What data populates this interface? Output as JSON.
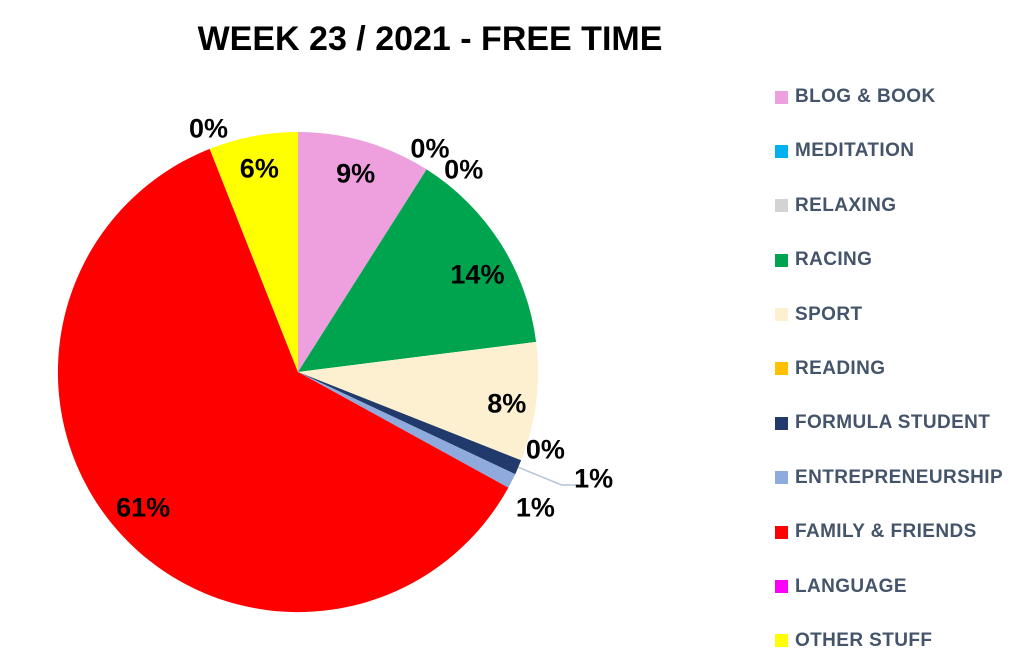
{
  "chart_data": {
    "type": "pie",
    "title": "WEEK 23 / 2021 - FREE TIME",
    "unit": "%",
    "legend_position": "right",
    "legend_text_color": "#44546a",
    "background_color": "#ffffff",
    "label_color": "#000000",
    "leader_line_color": "#b7c4da",
    "slices": [
      {
        "label": "BLOG & BOOK",
        "value": 9,
        "color": "#eda0dd"
      },
      {
        "label": "MEDITATION",
        "value": 0,
        "color": "#00b0f0"
      },
      {
        "label": "RELAXING",
        "value": 0,
        "color": "#d3d3d3"
      },
      {
        "label": "RACING",
        "value": 14,
        "color": "#00a44f"
      },
      {
        "label": "SPORT",
        "value": 8,
        "color": "#fcf0d1"
      },
      {
        "label": "READING",
        "value": 0,
        "color": "#ffc000"
      },
      {
        "label": "FORMULA STUDENT",
        "value": 1,
        "color": "#213a6b"
      },
      {
        "label": "ENTREPRENEURSHIP",
        "value": 1,
        "color": "#8faadc"
      },
      {
        "label": "FAMILY & FRIENDS",
        "value": 61,
        "color": "#fe0000"
      },
      {
        "label": "LANGUAGE",
        "value": 0,
        "color": "#fa00fa"
      },
      {
        "label": "OTHER STUFF",
        "value": 6,
        "color": "#ffff00"
      }
    ]
  }
}
